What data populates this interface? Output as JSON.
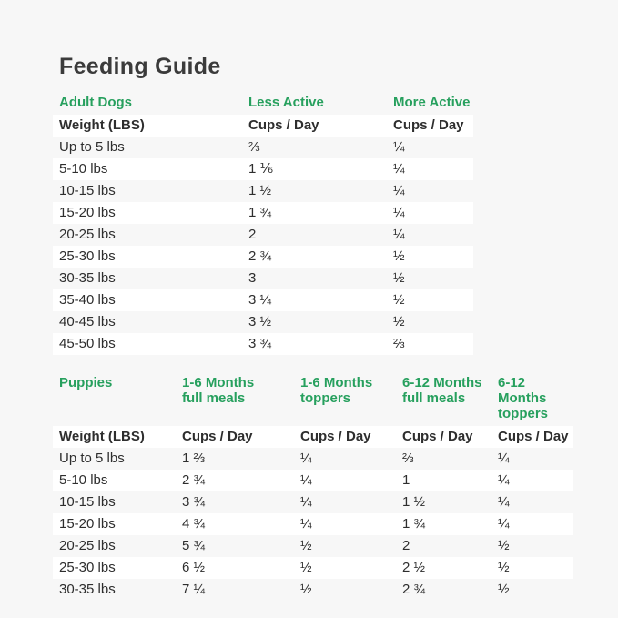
{
  "page": {
    "title": "Feeding Guide"
  },
  "colors": {
    "background": "#f7f7f7",
    "row_stripe": "#ffffff",
    "accent_green": "#27a05e",
    "text": "#2e2e2e",
    "title_text": "#3b3b3b"
  },
  "adult": {
    "section": "Adult Dogs",
    "weight_label": "Weight (LBS)",
    "columns": [
      {
        "label": "Less Active",
        "sub": "Cups / Day"
      },
      {
        "label": "More Active",
        "sub": "Cups / Day"
      }
    ],
    "rows": [
      {
        "weight": "Up to 5 lbs",
        "values": [
          "⅔",
          "¼"
        ]
      },
      {
        "weight": "5-10 lbs",
        "values": [
          "1 ⅙",
          "¼"
        ]
      },
      {
        "weight": "10-15 lbs",
        "values": [
          "1 ½",
          "¼"
        ]
      },
      {
        "weight": "15-20 lbs",
        "values": [
          "1 ¾",
          "¼"
        ]
      },
      {
        "weight": "20-25 lbs",
        "values": [
          "2",
          "¼"
        ]
      },
      {
        "weight": "25-30 lbs",
        "values": [
          "2 ¾",
          "½"
        ]
      },
      {
        "weight": "30-35 lbs",
        "values": [
          "3",
          "½"
        ]
      },
      {
        "weight": "35-40 lbs",
        "values": [
          "3 ¼",
          "½"
        ]
      },
      {
        "weight": "40-45 lbs",
        "values": [
          "3 ½",
          "½"
        ]
      },
      {
        "weight": "45-50 lbs",
        "values": [
          "3 ¾",
          "⅔"
        ]
      }
    ]
  },
  "puppies": {
    "section": "Puppies",
    "weight_label": "Weight (LBS)",
    "columns": [
      {
        "label": "1-6 Months",
        "label2": "full meals",
        "sub": "Cups / Day"
      },
      {
        "label": "1-6 Months",
        "label2": "toppers",
        "sub": "Cups / Day"
      },
      {
        "label": "6-12 Months",
        "label2": "full meals",
        "sub": "Cups / Day"
      },
      {
        "label": "6-12 Months",
        "label2": "toppers",
        "sub": "Cups / Day"
      }
    ],
    "rows": [
      {
        "weight": "Up to 5 lbs",
        "values": [
          "1 ⅔",
          "¼",
          "⅔",
          "¼"
        ]
      },
      {
        "weight": "5-10 lbs",
        "values": [
          "2 ¾",
          "¼",
          "1",
          "¼"
        ]
      },
      {
        "weight": "10-15 lbs",
        "values": [
          "3 ¾",
          "¼",
          "1 ½",
          "¼"
        ]
      },
      {
        "weight": "15-20 lbs",
        "values": [
          "4 ¾",
          "¼",
          "1 ¾",
          "¼"
        ]
      },
      {
        "weight": "20-25 lbs",
        "values": [
          "5 ¾",
          "½",
          "2",
          "½"
        ]
      },
      {
        "weight": "25-30 lbs",
        "values": [
          "6 ½",
          "½",
          "2 ½",
          "½"
        ]
      },
      {
        "weight": "30-35 lbs",
        "values": [
          "7 ¼",
          "½",
          "2 ¾",
          "½"
        ]
      }
    ]
  }
}
